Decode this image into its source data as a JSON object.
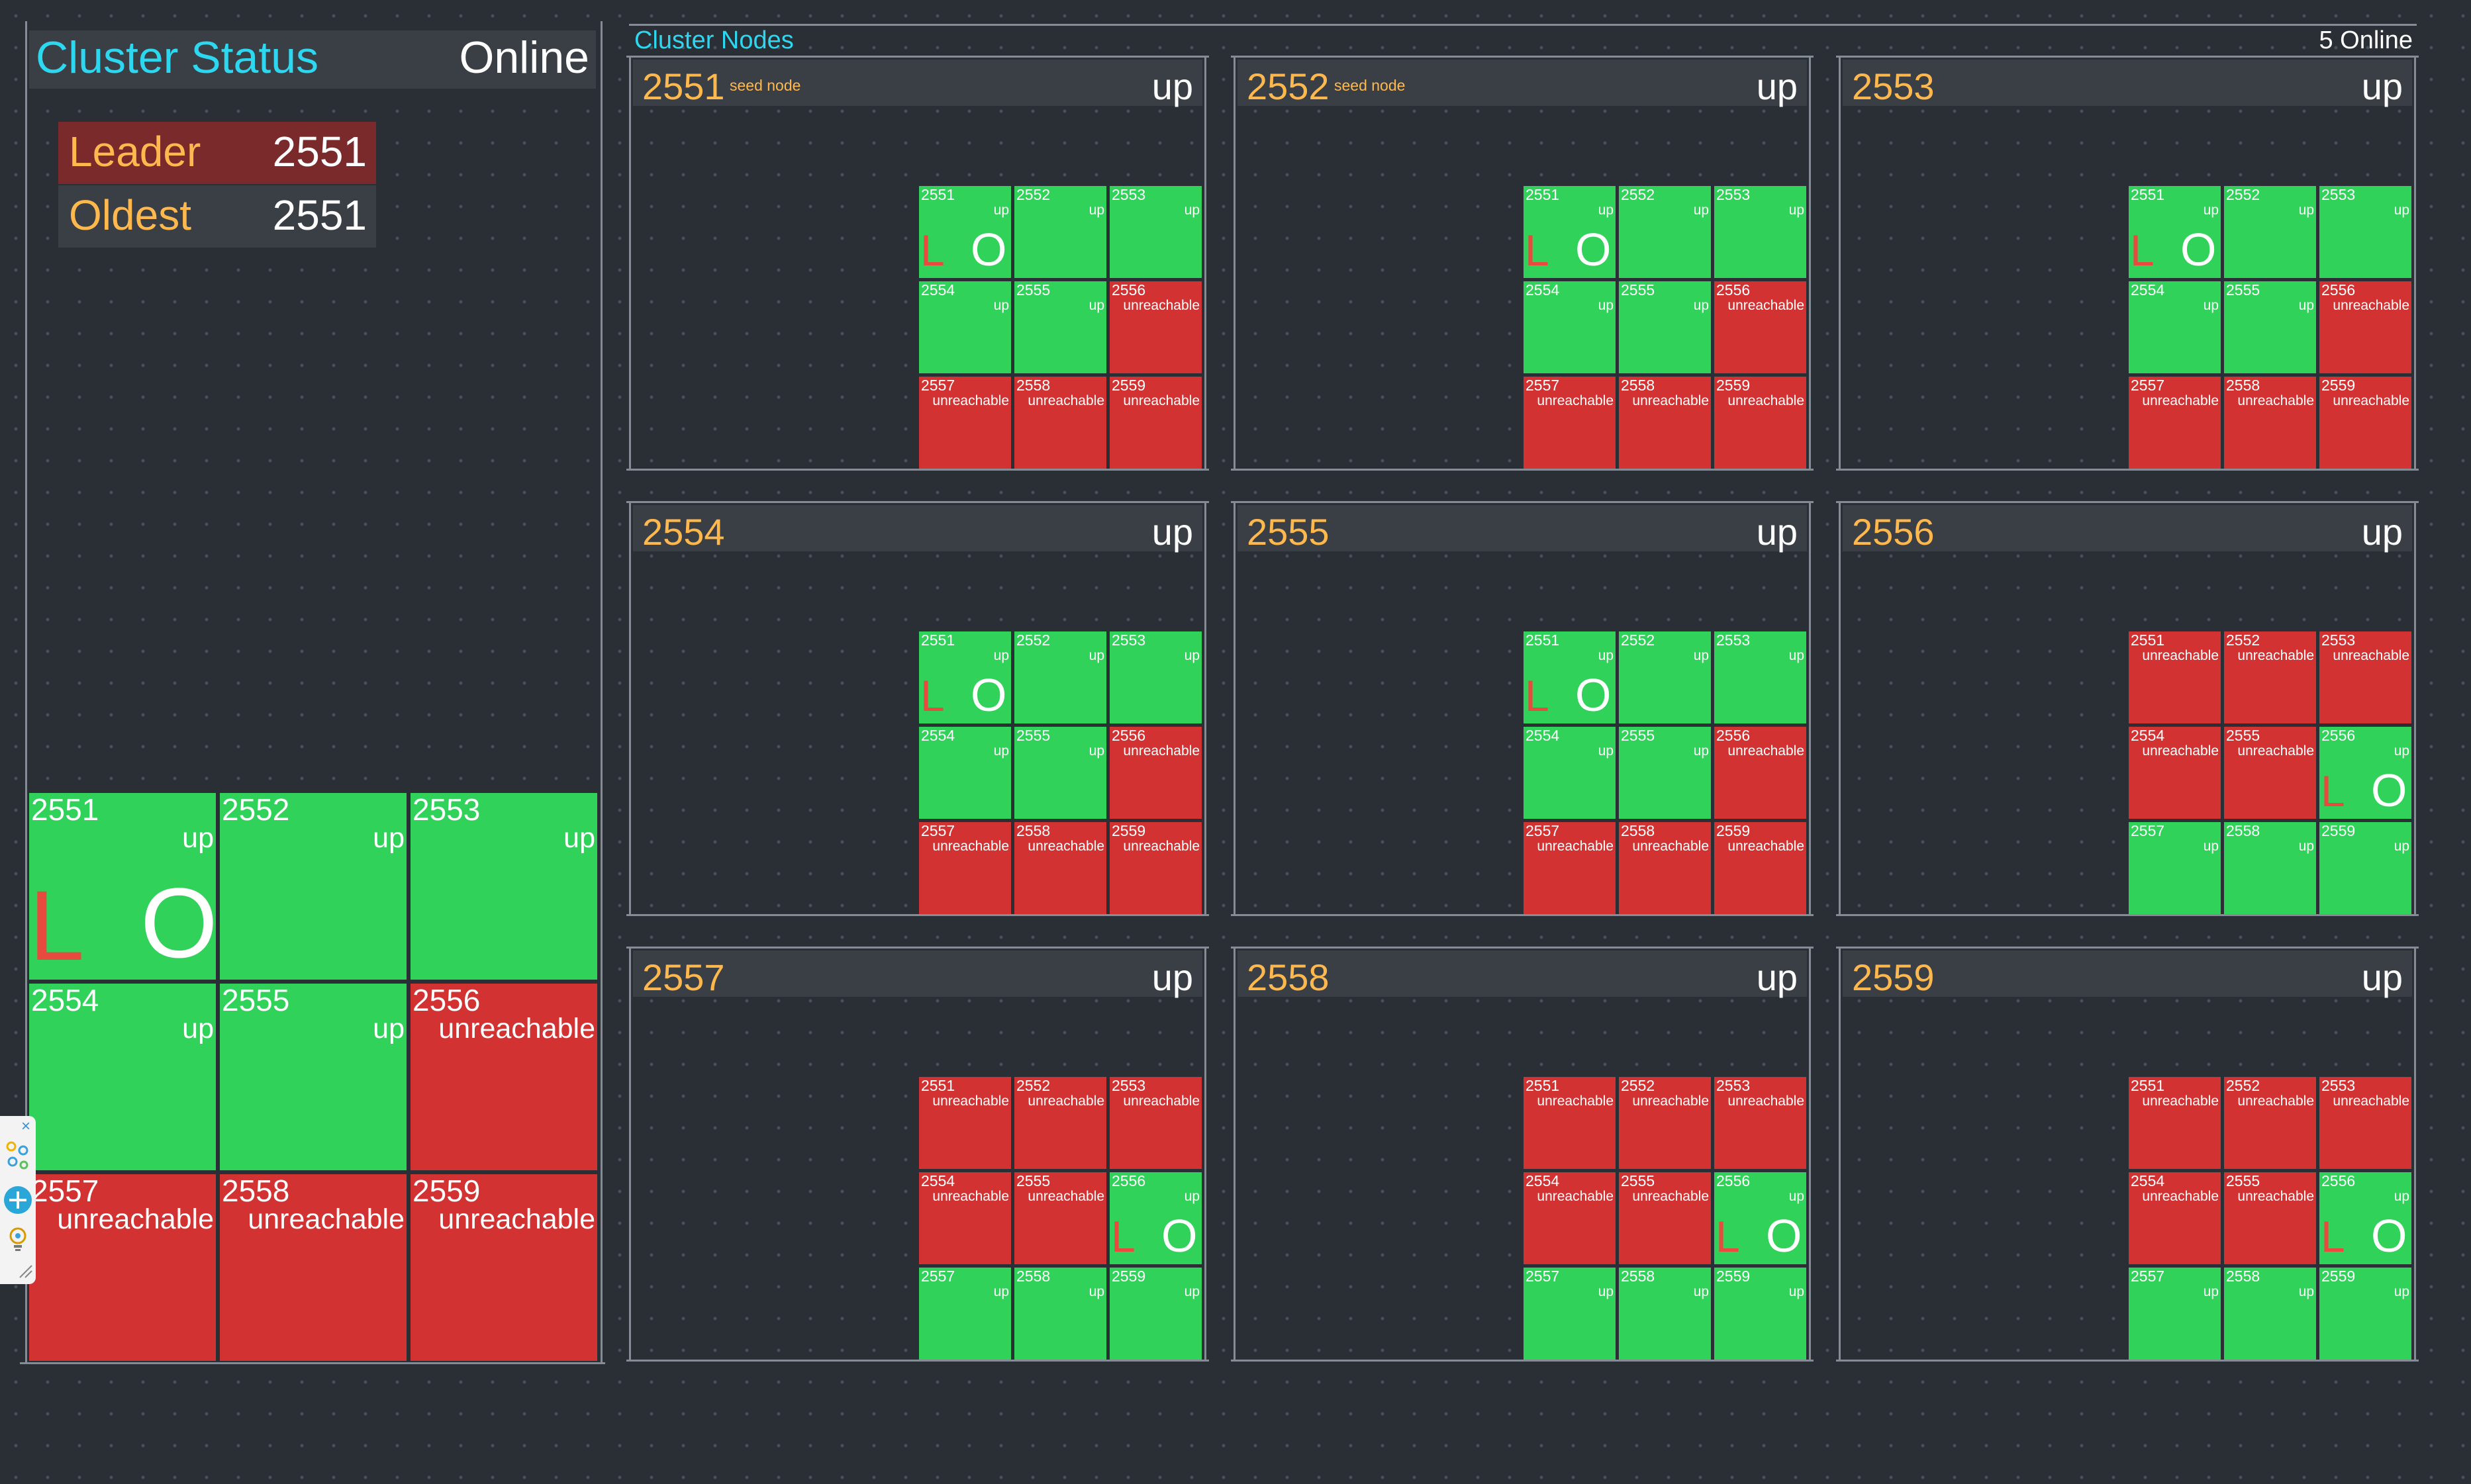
{
  "status_panel": {
    "title": "Cluster Status",
    "status": "Online",
    "leader_label": "Leader",
    "leader_value": "2551",
    "oldest_label": "Oldest",
    "oldest_value": "2551",
    "grid": [
      {
        "id": "2551",
        "state": "up",
        "leader": "L",
        "oldest": "O"
      },
      {
        "id": "2552",
        "state": "up"
      },
      {
        "id": "2553",
        "state": "up"
      },
      {
        "id": "2554",
        "state": "up"
      },
      {
        "id": "2555",
        "state": "up"
      },
      {
        "id": "2556",
        "state": "unreachable"
      },
      {
        "id": "2557",
        "state": "unreachable"
      },
      {
        "id": "2558",
        "state": "unreachable"
      },
      {
        "id": "2559",
        "state": "unreachable"
      }
    ]
  },
  "nodes_panel": {
    "title": "Cluster Nodes",
    "online_count": "5 Online",
    "nodes": [
      {
        "id": "2551",
        "seed": "seed node",
        "status": "up",
        "cells": [
          {
            "id": "2551",
            "state": "up",
            "leader": "L",
            "oldest": "O"
          },
          {
            "id": "2552",
            "state": "up"
          },
          {
            "id": "2553",
            "state": "up"
          },
          {
            "id": "2554",
            "state": "up"
          },
          {
            "id": "2555",
            "state": "up"
          },
          {
            "id": "2556",
            "state": "unreachable"
          },
          {
            "id": "2557",
            "state": "unreachable"
          },
          {
            "id": "2558",
            "state": "unreachable"
          },
          {
            "id": "2559",
            "state": "unreachable"
          }
        ]
      },
      {
        "id": "2552",
        "seed": "seed node",
        "status": "up",
        "cells": [
          {
            "id": "2551",
            "state": "up",
            "leader": "L",
            "oldest": "O"
          },
          {
            "id": "2552",
            "state": "up"
          },
          {
            "id": "2553",
            "state": "up"
          },
          {
            "id": "2554",
            "state": "up"
          },
          {
            "id": "2555",
            "state": "up"
          },
          {
            "id": "2556",
            "state": "unreachable"
          },
          {
            "id": "2557",
            "state": "unreachable"
          },
          {
            "id": "2558",
            "state": "unreachable"
          },
          {
            "id": "2559",
            "state": "unreachable"
          }
        ]
      },
      {
        "id": "2553",
        "seed": "",
        "status": "up",
        "cells": [
          {
            "id": "2551",
            "state": "up",
            "leader": "L",
            "oldest": "O"
          },
          {
            "id": "2552",
            "state": "up"
          },
          {
            "id": "2553",
            "state": "up"
          },
          {
            "id": "2554",
            "state": "up"
          },
          {
            "id": "2555",
            "state": "up"
          },
          {
            "id": "2556",
            "state": "unreachable"
          },
          {
            "id": "2557",
            "state": "unreachable"
          },
          {
            "id": "2558",
            "state": "unreachable"
          },
          {
            "id": "2559",
            "state": "unreachable"
          }
        ]
      },
      {
        "id": "2554",
        "seed": "",
        "status": "up",
        "cells": [
          {
            "id": "2551",
            "state": "up",
            "leader": "L",
            "oldest": "O"
          },
          {
            "id": "2552",
            "state": "up"
          },
          {
            "id": "2553",
            "state": "up"
          },
          {
            "id": "2554",
            "state": "up"
          },
          {
            "id": "2555",
            "state": "up"
          },
          {
            "id": "2556",
            "state": "unreachable"
          },
          {
            "id": "2557",
            "state": "unreachable"
          },
          {
            "id": "2558",
            "state": "unreachable"
          },
          {
            "id": "2559",
            "state": "unreachable"
          }
        ]
      },
      {
        "id": "2555",
        "seed": "",
        "status": "up",
        "cells": [
          {
            "id": "2551",
            "state": "up",
            "leader": "L",
            "oldest": "O"
          },
          {
            "id": "2552",
            "state": "up"
          },
          {
            "id": "2553",
            "state": "up"
          },
          {
            "id": "2554",
            "state": "up"
          },
          {
            "id": "2555",
            "state": "up"
          },
          {
            "id": "2556",
            "state": "unreachable"
          },
          {
            "id": "2557",
            "state": "unreachable"
          },
          {
            "id": "2558",
            "state": "unreachable"
          },
          {
            "id": "2559",
            "state": "unreachable"
          }
        ]
      },
      {
        "id": "2556",
        "seed": "",
        "status": "up",
        "cells": [
          {
            "id": "2551",
            "state": "unreachable"
          },
          {
            "id": "2552",
            "state": "unreachable"
          },
          {
            "id": "2553",
            "state": "unreachable"
          },
          {
            "id": "2554",
            "state": "unreachable"
          },
          {
            "id": "2555",
            "state": "unreachable"
          },
          {
            "id": "2556",
            "state": "up",
            "leader": "L",
            "oldest": "O"
          },
          {
            "id": "2557",
            "state": "up"
          },
          {
            "id": "2558",
            "state": "up"
          },
          {
            "id": "2559",
            "state": "up"
          }
        ]
      },
      {
        "id": "2557",
        "seed": "",
        "status": "up",
        "cells": [
          {
            "id": "2551",
            "state": "unreachable"
          },
          {
            "id": "2552",
            "state": "unreachable"
          },
          {
            "id": "2553",
            "state": "unreachable"
          },
          {
            "id": "2554",
            "state": "unreachable"
          },
          {
            "id": "2555",
            "state": "unreachable"
          },
          {
            "id": "2556",
            "state": "up",
            "leader": "L",
            "oldest": "O"
          },
          {
            "id": "2557",
            "state": "up"
          },
          {
            "id": "2558",
            "state": "up"
          },
          {
            "id": "2559",
            "state": "up"
          }
        ]
      },
      {
        "id": "2558",
        "seed": "",
        "status": "up",
        "cells": [
          {
            "id": "2551",
            "state": "unreachable"
          },
          {
            "id": "2552",
            "state": "unreachable"
          },
          {
            "id": "2553",
            "state": "unreachable"
          },
          {
            "id": "2554",
            "state": "unreachable"
          },
          {
            "id": "2555",
            "state": "unreachable"
          },
          {
            "id": "2556",
            "state": "up",
            "leader": "L",
            "oldest": "O"
          },
          {
            "id": "2557",
            "state": "up"
          },
          {
            "id": "2558",
            "state": "up"
          },
          {
            "id": "2559",
            "state": "up"
          }
        ]
      },
      {
        "id": "2559",
        "seed": "",
        "status": "up",
        "cells": [
          {
            "id": "2551",
            "state": "unreachable"
          },
          {
            "id": "2552",
            "state": "unreachable"
          },
          {
            "id": "2553",
            "state": "unreachable"
          },
          {
            "id": "2554",
            "state": "unreachable"
          },
          {
            "id": "2555",
            "state": "unreachable"
          },
          {
            "id": "2556",
            "state": "up",
            "leader": "L",
            "oldest": "O"
          },
          {
            "id": "2557",
            "state": "up"
          },
          {
            "id": "2558",
            "state": "up"
          },
          {
            "id": "2559",
            "state": "up"
          }
        ]
      }
    ]
  },
  "toolbar": {
    "icons": [
      "close-icon",
      "network-icon",
      "add-icon",
      "bulb-icon",
      "resize-handle-icon"
    ]
  }
}
